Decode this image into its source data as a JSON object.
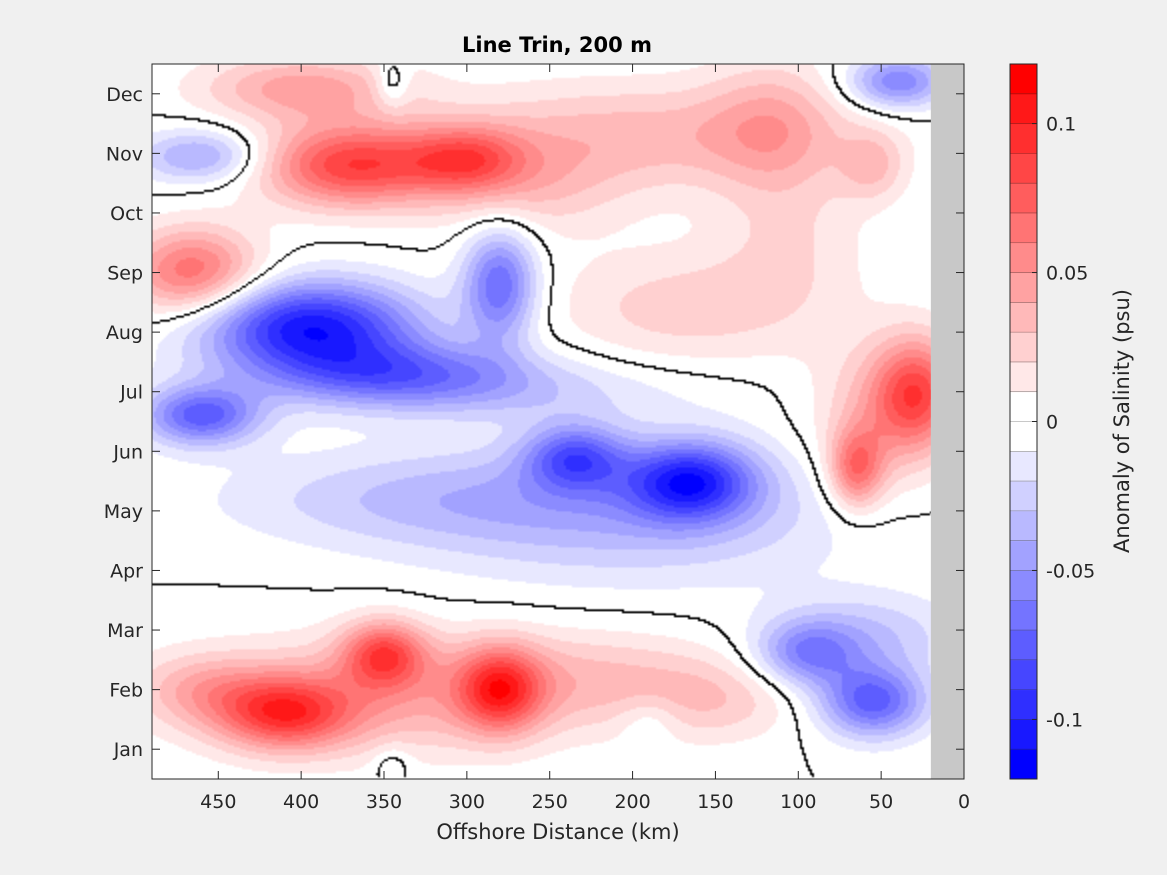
{
  "chart_data": {
    "type": "heatmap",
    "plot_style": "filled contour",
    "title": "Line Trin, 200 m",
    "xlabel": "Offshore Distance (km)",
    "ylabel": "",
    "x_reversed": true,
    "xlim": [
      0,
      490
    ],
    "ylim": [
      0.5,
      12.5
    ],
    "x_ticks": [
      450,
      400,
      350,
      300,
      250,
      200,
      150,
      100,
      50,
      0
    ],
    "x_tick_labels": [
      "450",
      "400",
      "350",
      "300",
      "250",
      "200",
      "150",
      "100",
      "50",
      "0"
    ],
    "y_ticks": [
      1,
      2,
      3,
      4,
      5,
      6,
      7,
      8,
      9,
      10,
      11,
      12
    ],
    "y_tick_labels": [
      "Jan",
      "Feb",
      "Mar",
      "Apr",
      "May",
      "Jun",
      "Jul",
      "Aug",
      "Sep",
      "Oct",
      "Nov",
      "Dec"
    ],
    "no_data_x_range": [
      0,
      20
    ],
    "no_data_color": "#c8c8c8",
    "zero_contour_color": "#000000",
    "colorbar": {
      "label": "Anomaly of Salinity (psu)",
      "clim": [
        -0.12,
        0.12
      ],
      "levels": 24,
      "ticks": [
        -0.1,
        -0.05,
        0,
        0.05,
        0.1
      ],
      "tick_labels": [
        "-0.1",
        "-0.05",
        "0",
        "0.05",
        "0.1"
      ],
      "colors": [
        "#0000ff",
        "#1818ff",
        "#2f2fff",
        "#4646ff",
        "#5d5dff",
        "#7474ff",
        "#8b8bff",
        "#a2a2ff",
        "#b9b9ff",
        "#d0d0ff",
        "#e8e8ff",
        "#ffffff",
        "#ffffff",
        "#ffe8e8",
        "#ffd0d0",
        "#ffb9b9",
        "#ffa2a2",
        "#ff8b8b",
        "#ff7474",
        "#ff5d5d",
        "#ff4646",
        "#ff2f2f",
        "#ff1818",
        "#ff0000"
      ]
    },
    "anomaly_features": [
      {
        "x": 395,
        "y": 8.1,
        "value": -0.105,
        "rx": 65,
        "ry": 0.75
      },
      {
        "x": 280,
        "y": 8.8,
        "value": -0.07,
        "rx": 22,
        "ry": 0.95
      },
      {
        "x": 460,
        "y": 6.6,
        "value": -0.075,
        "rx": 35,
        "ry": 0.5
      },
      {
        "x": 345,
        "y": 7.3,
        "value": -0.06,
        "rx": 80,
        "ry": 0.55
      },
      {
        "x": 165,
        "y": 5.5,
        "value": -0.085,
        "rx": 38,
        "ry": 0.65
      },
      {
        "x": 235,
        "y": 5.9,
        "value": -0.065,
        "rx": 30,
        "ry": 0.55
      },
      {
        "x": 200,
        "y": 5.0,
        "value": -0.035,
        "rx": 130,
        "ry": 1.2
      },
      {
        "x": 330,
        "y": 5.2,
        "value": -0.025,
        "rx": 120,
        "ry": 0.8
      },
      {
        "x": 270,
        "y": 7.0,
        "value": -0.02,
        "rx": 110,
        "ry": 0.55
      },
      {
        "x": 55,
        "y": 1.8,
        "value": -0.075,
        "rx": 32,
        "ry": 0.6
      },
      {
        "x": 95,
        "y": 2.6,
        "value": -0.05,
        "rx": 30,
        "ry": 0.55
      },
      {
        "x": 60,
        "y": 2.9,
        "value": -0.03,
        "rx": 55,
        "ry": 0.7
      },
      {
        "x": 40,
        "y": 12.2,
        "value": -0.06,
        "rx": 30,
        "ry": 0.45
      },
      {
        "x": 460,
        "y": 10.95,
        "value": -0.045,
        "rx": 38,
        "ry": 0.45
      },
      {
        "x": 345,
        "y": 12.15,
        "value": -0.025,
        "rx": 10,
        "ry": 0.4
      },
      {
        "x": 370,
        "y": 10.8,
        "value": 0.085,
        "rx": 55,
        "ry": 0.7
      },
      {
        "x": 300,
        "y": 10.9,
        "value": 0.055,
        "rx": 35,
        "ry": 0.55
      },
      {
        "x": 400,
        "y": 12.1,
        "value": 0.045,
        "rx": 60,
        "ry": 0.55
      },
      {
        "x": 200,
        "y": 11.3,
        "value": 0.035,
        "rx": 120,
        "ry": 0.9
      },
      {
        "x": 265,
        "y": 10.4,
        "value": 0.025,
        "rx": 60,
        "ry": 0.8
      },
      {
        "x": 115,
        "y": 11.5,
        "value": 0.03,
        "rx": 40,
        "ry": 1.1
      },
      {
        "x": 465,
        "y": 9.0,
        "value": 0.07,
        "rx": 40,
        "ry": 0.75
      },
      {
        "x": 170,
        "y": 8.4,
        "value": 0.025,
        "rx": 80,
        "ry": 1.0
      },
      {
        "x": 105,
        "y": 9.6,
        "value": 0.018,
        "rx": 45,
        "ry": 1.3
      },
      {
        "x": 55,
        "y": 10.8,
        "value": 0.028,
        "rx": 20,
        "ry": 0.6
      },
      {
        "x": 28,
        "y": 7.0,
        "value": 0.07,
        "rx": 26,
        "ry": 0.9
      },
      {
        "x": 65,
        "y": 5.7,
        "value": 0.06,
        "rx": 16,
        "ry": 0.65
      },
      {
        "x": 50,
        "y": 6.5,
        "value": 0.035,
        "rx": 40,
        "ry": 1.3
      },
      {
        "x": 410,
        "y": 1.6,
        "value": 0.075,
        "rx": 40,
        "ry": 0.6
      },
      {
        "x": 350,
        "y": 2.6,
        "value": 0.07,
        "rx": 25,
        "ry": 0.55
      },
      {
        "x": 280,
        "y": 2.0,
        "value": 0.075,
        "rx": 25,
        "ry": 0.7
      },
      {
        "x": 350,
        "y": 1.9,
        "value": 0.04,
        "rx": 110,
        "ry": 1.0
      },
      {
        "x": 220,
        "y": 2.2,
        "value": 0.025,
        "rx": 80,
        "ry": 0.8
      },
      {
        "x": 150,
        "y": 1.8,
        "value": 0.022,
        "rx": 50,
        "ry": 0.7
      },
      {
        "x": 460,
        "y": 2.0,
        "value": 0.03,
        "rx": 40,
        "ry": 0.6
      },
      {
        "x": 190,
        "y": 1.5,
        "value": -0.015,
        "rx": 18,
        "ry": 0.4
      },
      {
        "x": 345,
        "y": 0.75,
        "value": -0.015,
        "rx": 12,
        "ry": 0.35
      }
    ]
  }
}
